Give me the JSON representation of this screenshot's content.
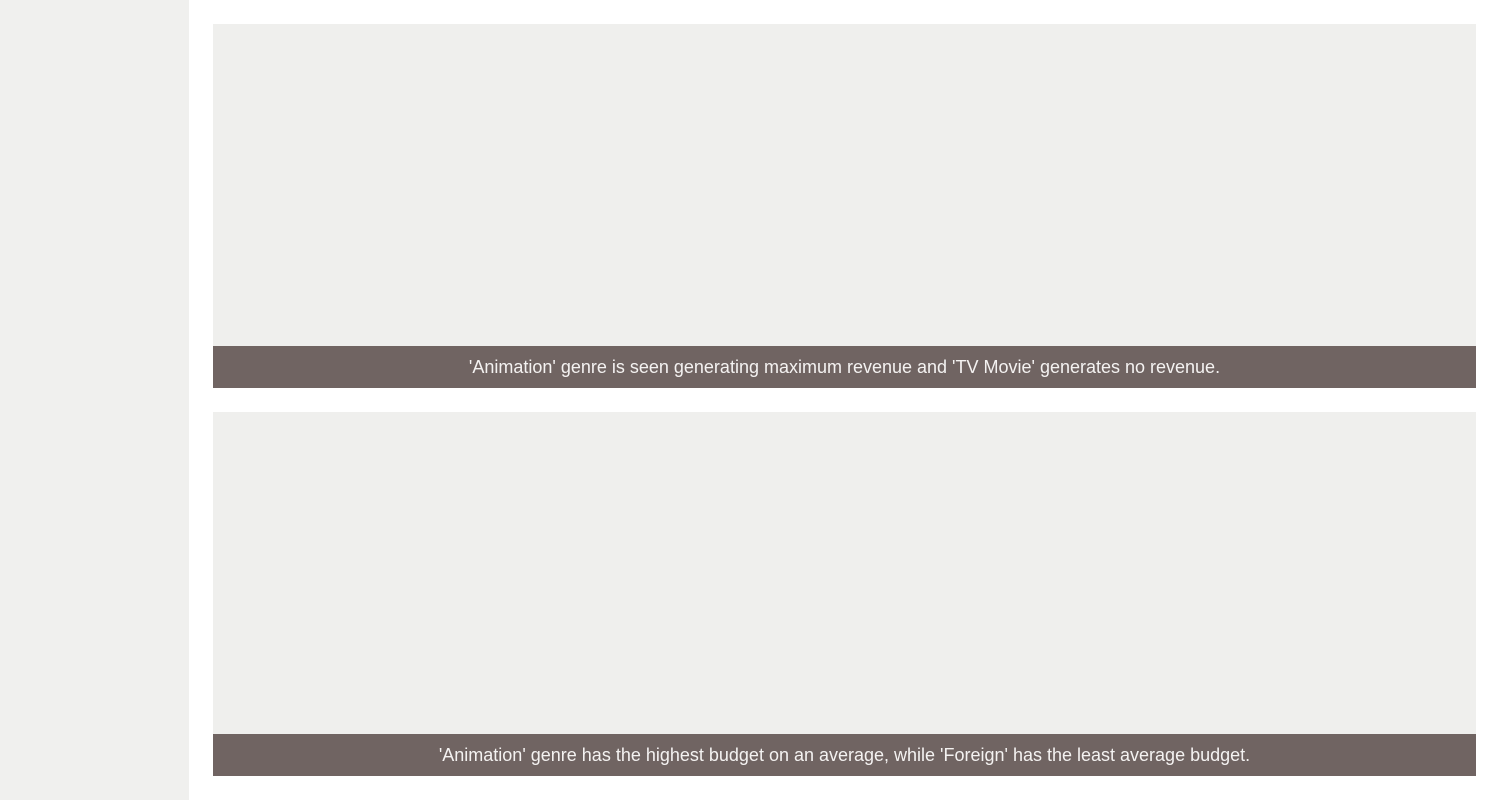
{
  "cards": [
    {
      "caption": "'Animation' genre is seen generating maximum revenue and 'TV Movie' generates no revenue."
    },
    {
      "caption": "'Animation' genre has the highest budget on an average, while 'Foreign' has the least average budget."
    }
  ]
}
